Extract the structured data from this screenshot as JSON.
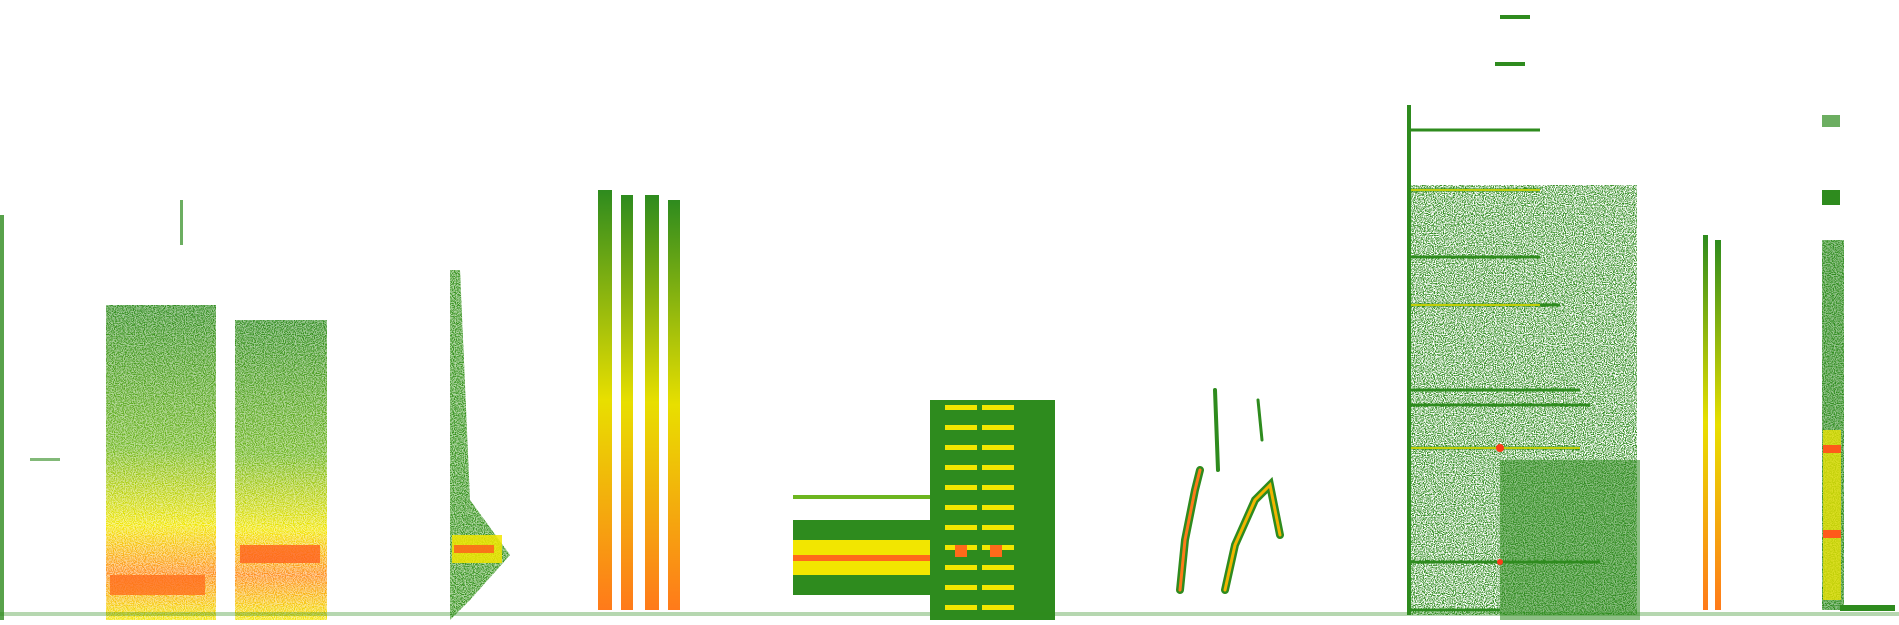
{
  "image": {
    "kind": "spectrogram",
    "background": "#ffffff",
    "palette": {
      "low": "#2e8b1e",
      "mid_low": "#5aa81c",
      "mid": "#f2e600",
      "high": "#ff8c1a",
      "peak": "#ff3b1a"
    },
    "segment_count": 11
  }
}
